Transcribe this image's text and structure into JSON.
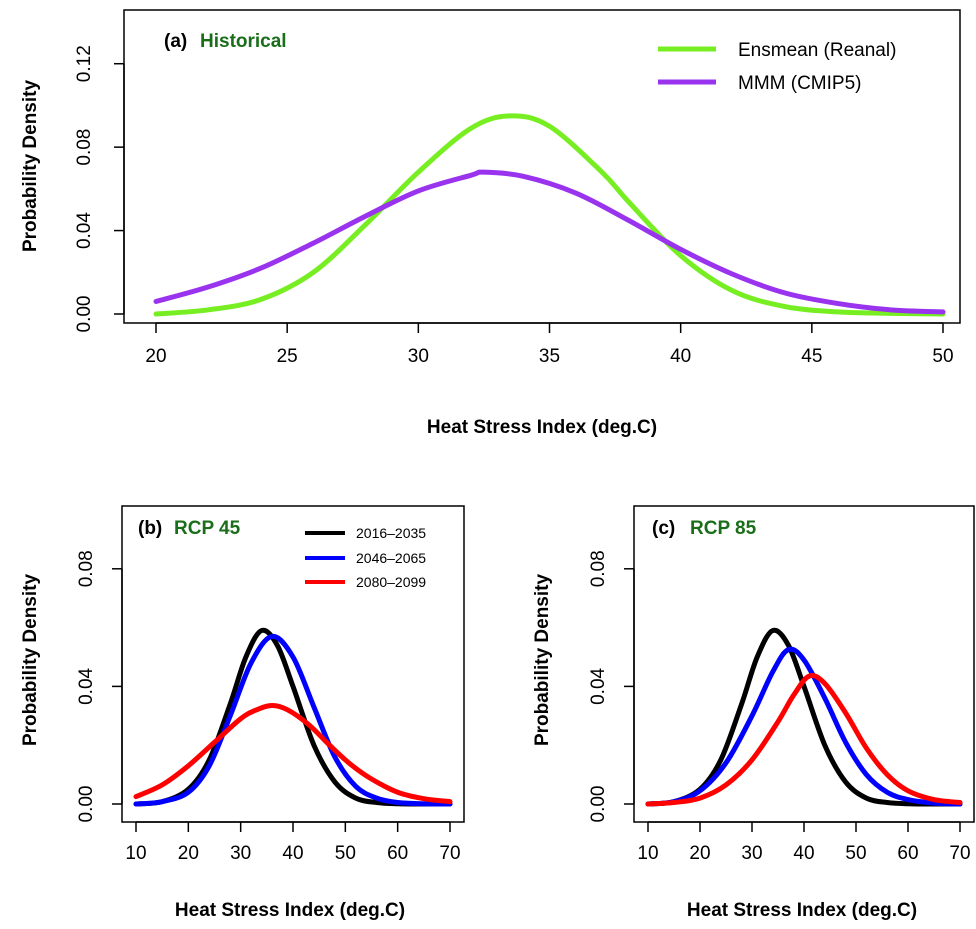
{
  "chart_data": [
    {
      "type": "line",
      "panel_label": "(a)",
      "title": "Historical",
      "title_color": "#1a6e1a",
      "xlabel": "Heat Stress Index (deg.C)",
      "ylabel": "Probability Density",
      "xlim": [
        20,
        50
      ],
      "ylim": [
        0,
        0.14
      ],
      "xticks": [
        "20",
        "25",
        "30",
        "35",
        "40",
        "45",
        "50"
      ],
      "yticks": [
        "0.00",
        "0.04",
        "0.08",
        "0.12"
      ],
      "legend_position": "top-right",
      "series": [
        {
          "name": "Ensmean (Reanal)",
          "color": "#77ee22",
          "x": [
            20,
            22,
            24,
            26,
            28,
            30,
            32,
            33.5,
            35,
            37,
            38,
            40,
            42,
            44,
            46,
            48,
            50
          ],
          "y": [
            0.0,
            0.002,
            0.007,
            0.02,
            0.043,
            0.068,
            0.089,
            0.095,
            0.09,
            0.068,
            0.054,
            0.028,
            0.011,
            0.0035,
            0.001,
            0.0003,
            0.0
          ]
        },
        {
          "name": "MMM (CMIP5)",
          "color": "#9933ee",
          "x": [
            20,
            22,
            24,
            26,
            28,
            30,
            32,
            32.5,
            34,
            36,
            38,
            40,
            42,
            44,
            46,
            48,
            50
          ],
          "y": [
            0.006,
            0.013,
            0.022,
            0.034,
            0.047,
            0.059,
            0.0665,
            0.068,
            0.066,
            0.058,
            0.045,
            0.031,
            0.019,
            0.01,
            0.005,
            0.002,
            0.001
          ]
        }
      ]
    },
    {
      "type": "line",
      "panel_label": "(b)",
      "title": "RCP 45",
      "title_color": "#1a6e1a",
      "xlabel": "Heat Stress Index (deg.C)",
      "ylabel": "Probability Density",
      "xlim": [
        10,
        70
      ],
      "ylim": [
        0,
        0.1
      ],
      "xticks": [
        "10",
        "20",
        "30",
        "40",
        "50",
        "60",
        "70"
      ],
      "yticks": [
        "0.00",
        "0.04",
        "0.08"
      ],
      "legend_position": "top-right",
      "series": [
        {
          "name": "2016–2035",
          "color": "#000000",
          "x": [
            10,
            15,
            20,
            24,
            28,
            31,
            34,
            37,
            40,
            44,
            48,
            52,
            56,
            60,
            65,
            70
          ],
          "y": [
            0.0,
            0.0008,
            0.005,
            0.015,
            0.034,
            0.05,
            0.059,
            0.054,
            0.04,
            0.02,
            0.0075,
            0.002,
            0.0005,
            0.0001,
            0.0,
            0.0
          ]
        },
        {
          "name": "2046–2065",
          "color": "#0000ff",
          "x": [
            10,
            15,
            20,
            24,
            28,
            32,
            36,
            40,
            44,
            48,
            52,
            56,
            60,
            65,
            70
          ],
          "y": [
            0.0,
            0.0008,
            0.004,
            0.013,
            0.03,
            0.048,
            0.057,
            0.05,
            0.033,
            0.016,
            0.006,
            0.002,
            0.0005,
            0.0001,
            0.0
          ]
        },
        {
          "name": "2080–2099",
          "color": "#ff0000",
          "x": [
            10,
            15,
            20,
            25,
            30,
            33,
            36,
            39,
            43,
            47,
            51,
            55,
            60,
            65,
            70
          ],
          "y": [
            0.0025,
            0.0065,
            0.013,
            0.021,
            0.029,
            0.032,
            0.0335,
            0.032,
            0.027,
            0.02,
            0.0135,
            0.0085,
            0.004,
            0.0018,
            0.0008
          ]
        }
      ]
    },
    {
      "type": "line",
      "panel_label": "(c)",
      "title": "RCP 85",
      "title_color": "#1a6e1a",
      "xlabel": "Heat Stress Index (deg.C)",
      "ylabel": "Probability Density",
      "xlim": [
        10,
        70
      ],
      "ylim": [
        0,
        0.1
      ],
      "xticks": [
        "10",
        "20",
        "30",
        "40",
        "50",
        "60",
        "70"
      ],
      "yticks": [
        "0.00",
        "0.04",
        "0.08"
      ],
      "series": [
        {
          "name": "2016–2035",
          "color": "#000000",
          "x": [
            10,
            15,
            20,
            24,
            28,
            31,
            34,
            37,
            40,
            44,
            48,
            52,
            56,
            60,
            65,
            70
          ],
          "y": [
            0.0,
            0.0008,
            0.005,
            0.015,
            0.034,
            0.05,
            0.059,
            0.054,
            0.04,
            0.02,
            0.0075,
            0.002,
            0.0005,
            0.0001,
            0.0,
            0.0
          ]
        },
        {
          "name": "2046–2065",
          "color": "#0000ff",
          "x": [
            10,
            15,
            20,
            25,
            30,
            34,
            37,
            40,
            44,
            48,
            52,
            56,
            60,
            65,
            70
          ],
          "y": [
            0.0,
            0.0008,
            0.0045,
            0.014,
            0.03,
            0.045,
            0.0525,
            0.049,
            0.036,
            0.021,
            0.01,
            0.004,
            0.0015,
            0.0003,
            0.0
          ]
        },
        {
          "name": "2080–2099",
          "color": "#ff0000",
          "x": [
            10,
            15,
            20,
            25,
            30,
            35,
            38,
            41,
            44,
            48,
            52,
            56,
            60,
            65,
            70
          ],
          "y": [
            0.0,
            0.0005,
            0.002,
            0.0065,
            0.015,
            0.028,
            0.037,
            0.0435,
            0.041,
            0.031,
            0.019,
            0.01,
            0.0045,
            0.0015,
            0.0005
          ]
        }
      ]
    }
  ]
}
